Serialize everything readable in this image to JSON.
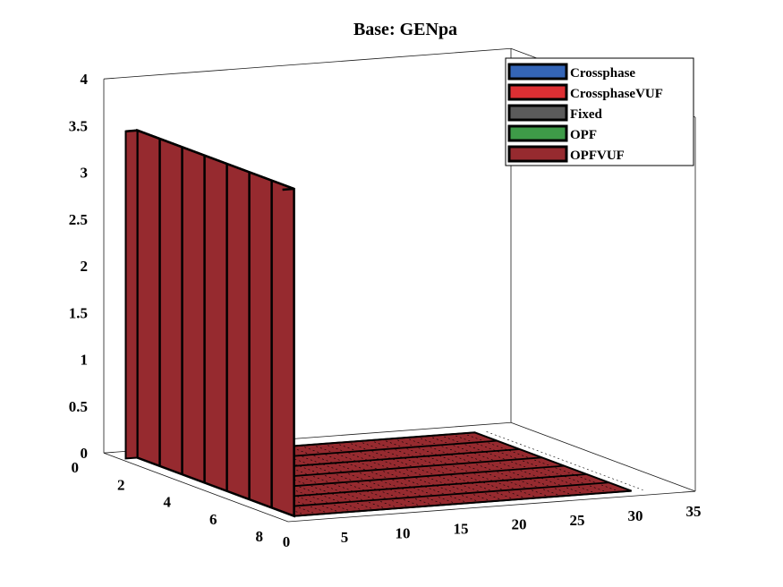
{
  "chart_data": {
    "type": "bar3",
    "title": "Base: GENpa",
    "xlabel": "",
    "ylabel": "",
    "zlabel": "",
    "x_ticks": [
      "0",
      "5",
      "10",
      "15",
      "20",
      "25",
      "30",
      "35"
    ],
    "y_ticks": [
      "0",
      "2",
      "4",
      "6",
      "8"
    ],
    "z_ticks": [
      "0",
      "0.5",
      "1",
      "1.5",
      "2",
      "2.5",
      "3",
      "3.5",
      "4"
    ],
    "xlim": [
      0,
      35
    ],
    "ylim": [
      0,
      8
    ],
    "zlim": [
      0,
      4
    ],
    "x_count": 30,
    "y_count": 7,
    "grid": false,
    "legend_position": "top-right",
    "series": [
      {
        "name": "Crossphase",
        "color": "#3465b7"
      },
      {
        "name": "CrossphaseVUF",
        "color": "#dd2f33"
      },
      {
        "name": "Fixed",
        "color": "#5b5b5b"
      },
      {
        "name": "OPF",
        "color": "#3e9b48"
      },
      {
        "name": "OPFVUF",
        "color": "#962a2f"
      }
    ],
    "bar_values_description_note": "",
    "bars": {
      "visible_series": "OPFVUF",
      "x_first_column_value": 3.5,
      "other_columns_value": 0.0
    }
  }
}
